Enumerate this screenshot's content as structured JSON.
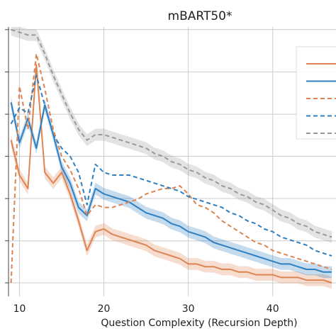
{
  "chart_data": {
    "type": "line",
    "title": "mBART50*",
    "xlabel": "Question Complexity (Recursion Depth)",
    "ylabel": "",
    "xlim": [
      8.7,
      47.5
    ],
    "ylim": [
      0,
      1
    ],
    "x_ticks": [
      "10",
      "20",
      "30",
      "40"
    ],
    "x_tick_values": [
      10,
      20,
      30,
      40
    ],
    "y_gridlines": [
      0.05,
      0.206,
      0.363,
      0.52,
      0.676,
      0.833,
      0.99
    ],
    "grid": true,
    "legend_position": "right",
    "colors": {
      "orange": "#dd8452",
      "blue": "#2f7fc1",
      "gray": "#999999"
    },
    "series": [
      {
        "color": "#dd8452",
        "style": "solid",
        "band": true,
        "x": [
          9,
          10,
          11,
          12,
          13,
          14,
          15,
          16,
          17,
          18,
          19,
          20,
          21,
          22,
          23,
          24,
          25,
          26,
          27,
          28,
          29,
          30,
          31,
          32,
          33,
          34,
          35,
          36,
          37,
          38,
          39,
          40,
          41,
          42,
          43,
          44,
          45,
          46,
          47
        ],
        "values": [
          0.58,
          0.45,
          0.4,
          0.86,
          0.46,
          0.42,
          0.46,
          0.38,
          0.28,
          0.17,
          0.24,
          0.25,
          0.23,
          0.22,
          0.21,
          0.2,
          0.19,
          0.17,
          0.16,
          0.15,
          0.14,
          0.12,
          0.12,
          0.11,
          0.11,
          0.1,
          0.1,
          0.09,
          0.09,
          0.08,
          0.08,
          0.08,
          0.07,
          0.07,
          0.07,
          0.06,
          0.06,
          0.06,
          0.05
        ]
      },
      {
        "color": "#2f7fc1",
        "style": "solid",
        "band": true,
        "x": [
          9,
          10,
          11,
          12,
          13,
          14,
          15,
          16,
          17,
          18,
          19,
          20,
          21,
          22,
          23,
          24,
          25,
          26,
          27,
          28,
          29,
          30,
          31,
          32,
          33,
          34,
          35,
          36,
          37,
          38,
          39,
          40,
          41,
          42,
          43,
          44,
          45,
          46,
          47
        ],
        "values": [
          0.72,
          0.57,
          0.66,
          0.55,
          0.71,
          0.6,
          0.48,
          0.42,
          0.33,
          0.3,
          0.4,
          0.38,
          0.37,
          0.36,
          0.35,
          0.33,
          0.31,
          0.3,
          0.29,
          0.27,
          0.26,
          0.24,
          0.23,
          0.22,
          0.2,
          0.19,
          0.18,
          0.17,
          0.16,
          0.15,
          0.14,
          0.13,
          0.12,
          0.12,
          0.11,
          0.1,
          0.1,
          0.09,
          0.09
        ]
      },
      {
        "color": "#dd8452",
        "style": "dashed",
        "band": false,
        "x": [
          9,
          10,
          11,
          12,
          13,
          14,
          15,
          16,
          17,
          18,
          19,
          20,
          21,
          22,
          23,
          24,
          25,
          26,
          27,
          28,
          29,
          30,
          31,
          32,
          33,
          34,
          35,
          36,
          37,
          38,
          39,
          40,
          41,
          42,
          43,
          44,
          45,
          46,
          47
        ],
        "values": [
          0.05,
          0.78,
          0.62,
          0.9,
          0.77,
          0.62,
          0.52,
          0.47,
          0.4,
          0.3,
          0.34,
          0.33,
          0.33,
          0.34,
          0.35,
          0.36,
          0.38,
          0.39,
          0.4,
          0.4,
          0.41,
          0.38,
          0.34,
          0.33,
          0.31,
          0.28,
          0.26,
          0.24,
          0.22,
          0.2,
          0.19,
          0.17,
          0.16,
          0.15,
          0.14,
          0.13,
          0.12,
          0.11,
          0.1
        ]
      },
      {
        "color": "#2f7fc1",
        "style": "dashed",
        "band": false,
        "x": [
          9,
          10,
          11,
          12,
          13,
          14,
          15,
          16,
          17,
          18,
          19,
          20,
          21,
          22,
          23,
          24,
          25,
          26,
          27,
          28,
          29,
          30,
          31,
          32,
          33,
          34,
          35,
          36,
          37,
          38,
          39,
          40,
          41,
          42,
          43,
          44,
          45,
          46,
          47
        ],
        "values": [
          0.64,
          0.7,
          0.68,
          0.82,
          0.71,
          0.6,
          0.55,
          0.52,
          0.46,
          0.34,
          0.49,
          0.46,
          0.45,
          0.45,
          0.45,
          0.44,
          0.43,
          0.42,
          0.41,
          0.4,
          0.39,
          0.37,
          0.36,
          0.35,
          0.34,
          0.33,
          0.31,
          0.3,
          0.28,
          0.27,
          0.25,
          0.24,
          0.22,
          0.21,
          0.2,
          0.19,
          0.17,
          0.16,
          0.15
        ]
      },
      {
        "color": "#999999",
        "style": "dashed",
        "band": true,
        "x": [
          9,
          10,
          11,
          12,
          13,
          14,
          15,
          16,
          17,
          18,
          19,
          20,
          21,
          22,
          23,
          24,
          25,
          26,
          27,
          28,
          29,
          30,
          31,
          32,
          33,
          34,
          35,
          36,
          37,
          38,
          39,
          40,
          41,
          42,
          43,
          44,
          45,
          46,
          47
        ],
        "values": [
          0.99,
          0.98,
          0.97,
          0.97,
          0.9,
          0.82,
          0.75,
          0.68,
          0.62,
          0.58,
          0.6,
          0.6,
          0.59,
          0.58,
          0.57,
          0.56,
          0.55,
          0.53,
          0.52,
          0.5,
          0.49,
          0.47,
          0.46,
          0.44,
          0.43,
          0.41,
          0.4,
          0.38,
          0.37,
          0.35,
          0.34,
          0.32,
          0.3,
          0.29,
          0.27,
          0.26,
          0.24,
          0.23,
          0.22
        ]
      }
    ]
  }
}
